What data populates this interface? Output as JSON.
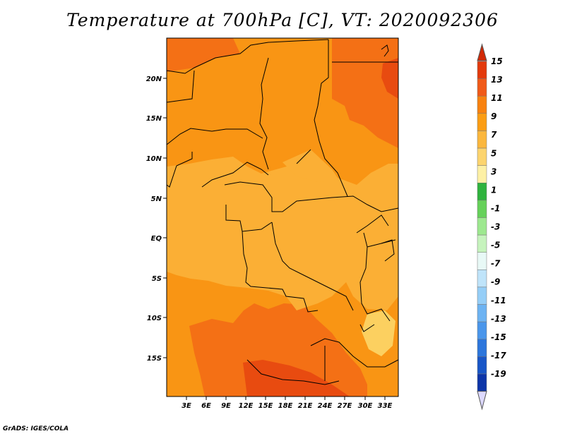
{
  "title": "Temperature at 700hPa [C], VT: 2020092306",
  "credit": "GrADS: IGES/COLA",
  "map": {
    "lat_labels": [
      "20N",
      "15N",
      "10N",
      "5N",
      "EQ",
      "5S",
      "10S",
      "15S"
    ],
    "lon_labels": [
      "3E",
      "6E",
      "9E",
      "12E",
      "15E",
      "18E",
      "21E",
      "24E",
      "27E",
      "30E",
      "33E"
    ]
  },
  "colorbar": {
    "labels": [
      "15",
      "13",
      "11",
      "9",
      "7",
      "5",
      "3",
      "1",
      "-1",
      "-3",
      "-5",
      "-7",
      "-9",
      "-11",
      "-13",
      "-15",
      "-17",
      "-19"
    ],
    "colors": [
      "#e33a0c",
      "#f05a18",
      "#f8820f",
      "#fb9d13",
      "#fbb73d",
      "#fcd46e",
      "#fdf0a5",
      "#2fb33e",
      "#66d15a",
      "#9de88f",
      "#c6f3bd",
      "#e8f9f6",
      "#bfe4fa",
      "#95cef7",
      "#6db3f2",
      "#4a96eb",
      "#2c76dc",
      "#1856c7",
      "#0c35a8",
      "#0a1a7a"
    ],
    "top_triangle_color": "#d12806",
    "bottom_triangle_color": "#ddd9ff"
  },
  "field_colors": {
    "t13": "#e84b10",
    "t11": "#f47015",
    "t9": "#f99514",
    "t7": "#fbaf35",
    "t5": "#fcd060"
  }
}
